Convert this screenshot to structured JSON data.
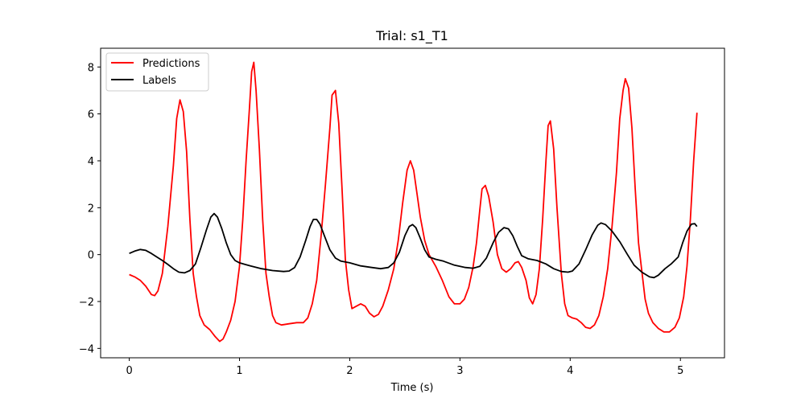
{
  "chart_data": {
    "type": "line",
    "title": "Trial: s1_T1",
    "xlabel": "Time (s)",
    "ylabel": "",
    "xlim": [
      -0.26,
      5.4
    ],
    "ylim": [
      -4.4,
      8.8
    ],
    "xticks": [
      0,
      1,
      2,
      3,
      4,
      5
    ],
    "yticks": [
      -4,
      -2,
      0,
      2,
      4,
      6,
      8
    ],
    "grid": false,
    "legend_position": "top-left",
    "series": [
      {
        "name": "Predictions",
        "color": "#ff0000",
        "points": [
          [
            0,
            -0.85
          ],
          [
            0.05,
            -0.95
          ],
          [
            0.1,
            -1.1
          ],
          [
            0.15,
            -1.35
          ],
          [
            0.2,
            -1.7
          ],
          [
            0.23,
            -1.75
          ],
          [
            0.26,
            -1.55
          ],
          [
            0.3,
            -0.8
          ],
          [
            0.35,
            1.2
          ],
          [
            0.4,
            3.8
          ],
          [
            0.43,
            5.8
          ],
          [
            0.46,
            6.6
          ],
          [
            0.49,
            6.1
          ],
          [
            0.52,
            4.4
          ],
          [
            0.55,
            1.5
          ],
          [
            0.58,
            -0.8
          ],
          [
            0.61,
            -1.8
          ],
          [
            0.64,
            -2.6
          ],
          [
            0.68,
            -3.0
          ],
          [
            0.73,
            -3.2
          ],
          [
            0.78,
            -3.5
          ],
          [
            0.82,
            -3.7
          ],
          [
            0.85,
            -3.6
          ],
          [
            0.88,
            -3.3
          ],
          [
            0.92,
            -2.8
          ],
          [
            0.96,
            -2.0
          ],
          [
            1.0,
            -0.5
          ],
          [
            1.03,
            1.5
          ],
          [
            1.06,
            4.0
          ],
          [
            1.09,
            6.2
          ],
          [
            1.11,
            7.8
          ],
          [
            1.13,
            8.2
          ],
          [
            1.15,
            7.0
          ],
          [
            1.18,
            4.5
          ],
          [
            1.21,
            1.5
          ],
          [
            1.24,
            -0.8
          ],
          [
            1.27,
            -1.8
          ],
          [
            1.3,
            -2.6
          ],
          [
            1.33,
            -2.9
          ],
          [
            1.38,
            -3.0
          ],
          [
            1.45,
            -2.95
          ],
          [
            1.52,
            -2.9
          ],
          [
            1.58,
            -2.9
          ],
          [
            1.62,
            -2.7
          ],
          [
            1.66,
            -2.1
          ],
          [
            1.7,
            -1.1
          ],
          [
            1.74,
            0.8
          ],
          [
            1.78,
            3.0
          ],
          [
            1.82,
            5.4
          ],
          [
            1.84,
            6.8
          ],
          [
            1.87,
            7.0
          ],
          [
            1.9,
            5.6
          ],
          [
            1.93,
            2.8
          ],
          [
            1.96,
            -0.2
          ],
          [
            1.99,
            -1.5
          ],
          [
            2.02,
            -2.3
          ],
          [
            2.06,
            -2.2
          ],
          [
            2.1,
            -2.1
          ],
          [
            2.14,
            -2.2
          ],
          [
            2.18,
            -2.5
          ],
          [
            2.22,
            -2.65
          ],
          [
            2.26,
            -2.55
          ],
          [
            2.3,
            -2.2
          ],
          [
            2.35,
            -1.5
          ],
          [
            2.4,
            -0.6
          ],
          [
            2.44,
            0.6
          ],
          [
            2.48,
            2.2
          ],
          [
            2.52,
            3.6
          ],
          [
            2.55,
            4.0
          ],
          [
            2.58,
            3.6
          ],
          [
            2.61,
            2.6
          ],
          [
            2.64,
            1.6
          ],
          [
            2.68,
            0.6
          ],
          [
            2.72,
            0.0
          ],
          [
            2.78,
            -0.5
          ],
          [
            2.84,
            -1.1
          ],
          [
            2.9,
            -1.8
          ],
          [
            2.95,
            -2.1
          ],
          [
            3.0,
            -2.1
          ],
          [
            3.04,
            -1.9
          ],
          [
            3.08,
            -1.4
          ],
          [
            3.12,
            -0.5
          ],
          [
            3.15,
            0.5
          ],
          [
            3.18,
            1.9
          ],
          [
            3.2,
            2.8
          ],
          [
            3.23,
            2.95
          ],
          [
            3.26,
            2.5
          ],
          [
            3.3,
            1.4
          ],
          [
            3.34,
            0.0
          ],
          [
            3.38,
            -0.6
          ],
          [
            3.42,
            -0.75
          ],
          [
            3.46,
            -0.6
          ],
          [
            3.5,
            -0.35
          ],
          [
            3.53,
            -0.3
          ],
          [
            3.56,
            -0.55
          ],
          [
            3.6,
            -1.1
          ],
          [
            3.63,
            -1.85
          ],
          [
            3.66,
            -2.1
          ],
          [
            3.69,
            -1.7
          ],
          [
            3.72,
            -0.6
          ],
          [
            3.75,
            1.5
          ],
          [
            3.78,
            4.0
          ],
          [
            3.8,
            5.5
          ],
          [
            3.82,
            5.7
          ],
          [
            3.85,
            4.5
          ],
          [
            3.88,
            2.0
          ],
          [
            3.92,
            -0.8
          ],
          [
            3.95,
            -2.1
          ],
          [
            3.98,
            -2.6
          ],
          [
            4.02,
            -2.7
          ],
          [
            4.06,
            -2.75
          ],
          [
            4.1,
            -2.9
          ],
          [
            4.14,
            -3.1
          ],
          [
            4.18,
            -3.15
          ],
          [
            4.22,
            -3.0
          ],
          [
            4.26,
            -2.6
          ],
          [
            4.3,
            -1.8
          ],
          [
            4.34,
            -0.6
          ],
          [
            4.38,
            1.2
          ],
          [
            4.42,
            3.5
          ],
          [
            4.45,
            5.8
          ],
          [
            4.48,
            7.0
          ],
          [
            4.5,
            7.5
          ],
          [
            4.53,
            7.1
          ],
          [
            4.56,
            5.4
          ],
          [
            4.59,
            2.8
          ],
          [
            4.62,
            0.5
          ],
          [
            4.65,
            -0.7
          ],
          [
            4.68,
            -1.9
          ],
          [
            4.71,
            -2.5
          ],
          [
            4.75,
            -2.9
          ],
          [
            4.8,
            -3.15
          ],
          [
            4.85,
            -3.3
          ],
          [
            4.9,
            -3.3
          ],
          [
            4.95,
            -3.1
          ],
          [
            4.99,
            -2.7
          ],
          [
            5.03,
            -1.8
          ],
          [
            5.06,
            -0.5
          ],
          [
            5.09,
            1.5
          ],
          [
            5.12,
            4.0
          ],
          [
            5.15,
            6.05
          ]
        ]
      },
      {
        "name": "Labels",
        "color": "#000000",
        "points": [
          [
            0,
            0.05
          ],
          [
            0.05,
            0.15
          ],
          [
            0.1,
            0.22
          ],
          [
            0.15,
            0.18
          ],
          [
            0.2,
            0.05
          ],
          [
            0.25,
            -0.1
          ],
          [
            0.3,
            -0.25
          ],
          [
            0.35,
            -0.42
          ],
          [
            0.4,
            -0.6
          ],
          [
            0.45,
            -0.75
          ],
          [
            0.5,
            -0.78
          ],
          [
            0.55,
            -0.68
          ],
          [
            0.6,
            -0.4
          ],
          [
            0.65,
            0.3
          ],
          [
            0.7,
            1.05
          ],
          [
            0.74,
            1.6
          ],
          [
            0.77,
            1.75
          ],
          [
            0.8,
            1.6
          ],
          [
            0.84,
            1.1
          ],
          [
            0.88,
            0.5
          ],
          [
            0.92,
            0.0
          ],
          [
            0.96,
            -0.25
          ],
          [
            1.0,
            -0.35
          ],
          [
            1.05,
            -0.42
          ],
          [
            1.1,
            -0.48
          ],
          [
            1.2,
            -0.6
          ],
          [
            1.3,
            -0.68
          ],
          [
            1.4,
            -0.72
          ],
          [
            1.45,
            -0.7
          ],
          [
            1.5,
            -0.55
          ],
          [
            1.55,
            -0.1
          ],
          [
            1.6,
            0.6
          ],
          [
            1.64,
            1.2
          ],
          [
            1.67,
            1.5
          ],
          [
            1.7,
            1.5
          ],
          [
            1.73,
            1.3
          ],
          [
            1.77,
            0.8
          ],
          [
            1.82,
            0.2
          ],
          [
            1.87,
            -0.15
          ],
          [
            1.92,
            -0.28
          ],
          [
            2.0,
            -0.35
          ],
          [
            2.1,
            -0.48
          ],
          [
            2.2,
            -0.55
          ],
          [
            2.28,
            -0.6
          ],
          [
            2.35,
            -0.55
          ],
          [
            2.4,
            -0.35
          ],
          [
            2.45,
            0.1
          ],
          [
            2.5,
            0.8
          ],
          [
            2.54,
            1.2
          ],
          [
            2.57,
            1.28
          ],
          [
            2.6,
            1.15
          ],
          [
            2.64,
            0.7
          ],
          [
            2.68,
            0.2
          ],
          [
            2.72,
            -0.1
          ],
          [
            2.78,
            -0.2
          ],
          [
            2.85,
            -0.28
          ],
          [
            2.95,
            -0.45
          ],
          [
            3.05,
            -0.55
          ],
          [
            3.12,
            -0.58
          ],
          [
            3.18,
            -0.5
          ],
          [
            3.24,
            -0.15
          ],
          [
            3.3,
            0.5
          ],
          [
            3.35,
            0.95
          ],
          [
            3.4,
            1.15
          ],
          [
            3.44,
            1.1
          ],
          [
            3.48,
            0.8
          ],
          [
            3.52,
            0.35
          ],
          [
            3.56,
            -0.05
          ],
          [
            3.62,
            -0.18
          ],
          [
            3.7,
            -0.25
          ],
          [
            3.78,
            -0.4
          ],
          [
            3.85,
            -0.6
          ],
          [
            3.92,
            -0.72
          ],
          [
            3.98,
            -0.75
          ],
          [
            4.02,
            -0.7
          ],
          [
            4.08,
            -0.4
          ],
          [
            4.14,
            0.2
          ],
          [
            4.2,
            0.85
          ],
          [
            4.25,
            1.25
          ],
          [
            4.28,
            1.35
          ],
          [
            4.32,
            1.28
          ],
          [
            4.38,
            1.0
          ],
          [
            4.45,
            0.55
          ],
          [
            4.52,
            0.0
          ],
          [
            4.58,
            -0.45
          ],
          [
            4.65,
            -0.75
          ],
          [
            4.72,
            -0.95
          ],
          [
            4.76,
            -0.98
          ],
          [
            4.8,
            -0.88
          ],
          [
            4.86,
            -0.6
          ],
          [
            4.92,
            -0.38
          ],
          [
            4.98,
            -0.1
          ],
          [
            5.02,
            0.5
          ],
          [
            5.06,
            1.0
          ],
          [
            5.1,
            1.3
          ],
          [
            5.13,
            1.32
          ],
          [
            5.15,
            1.2
          ]
        ]
      }
    ]
  }
}
